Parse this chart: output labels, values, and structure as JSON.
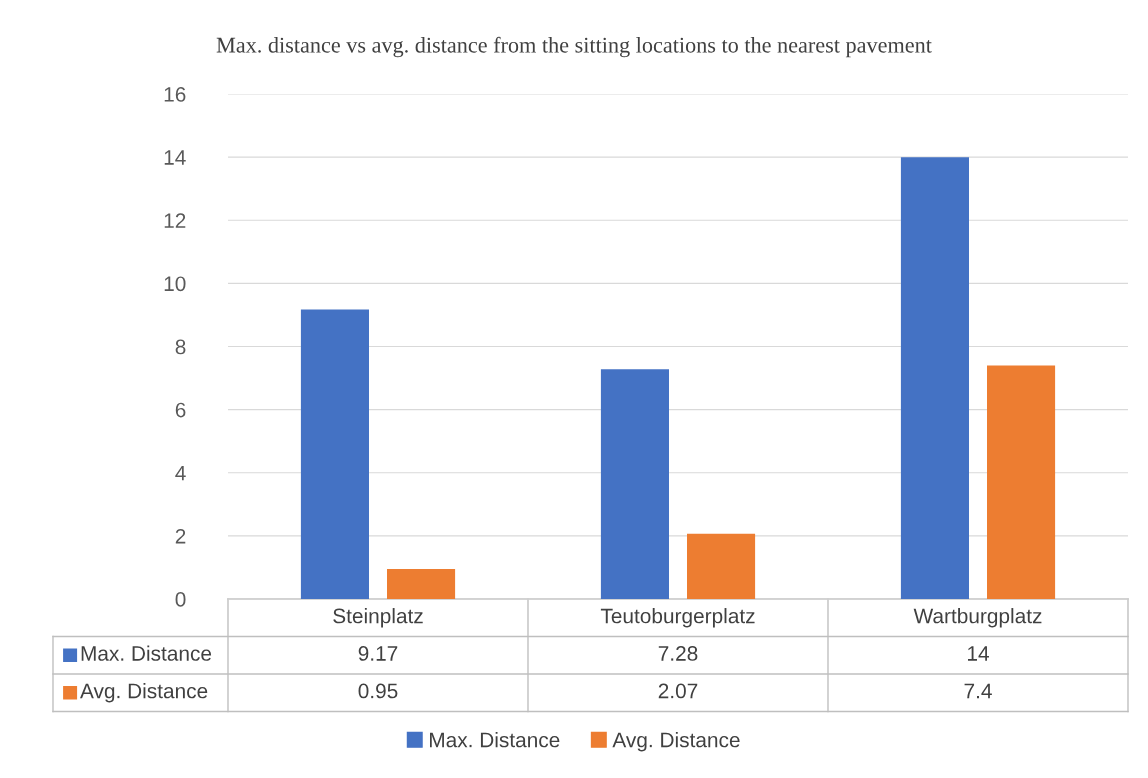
{
  "chart_data": {
    "type": "bar",
    "title": "Max. distance vs avg. distance from the sitting locations to the nearest pavement",
    "categories": [
      "Steinplatz",
      "Teutoburgerplatz",
      "Wartburgplatz"
    ],
    "series": [
      {
        "name": "Max. Distance",
        "color": "#4472c4",
        "values": [
          9.17,
          7.28,
          14
        ]
      },
      {
        "name": "Avg. Distance",
        "color": "#ed7d31",
        "values": [
          0.95,
          2.07,
          7.4
        ]
      }
    ],
    "ylim": [
      0,
      16
    ],
    "yticks": [
      0,
      2,
      4,
      6,
      8,
      10,
      12,
      14,
      16
    ],
    "grid": "y",
    "legend": "bottom",
    "data_labels": true
  }
}
